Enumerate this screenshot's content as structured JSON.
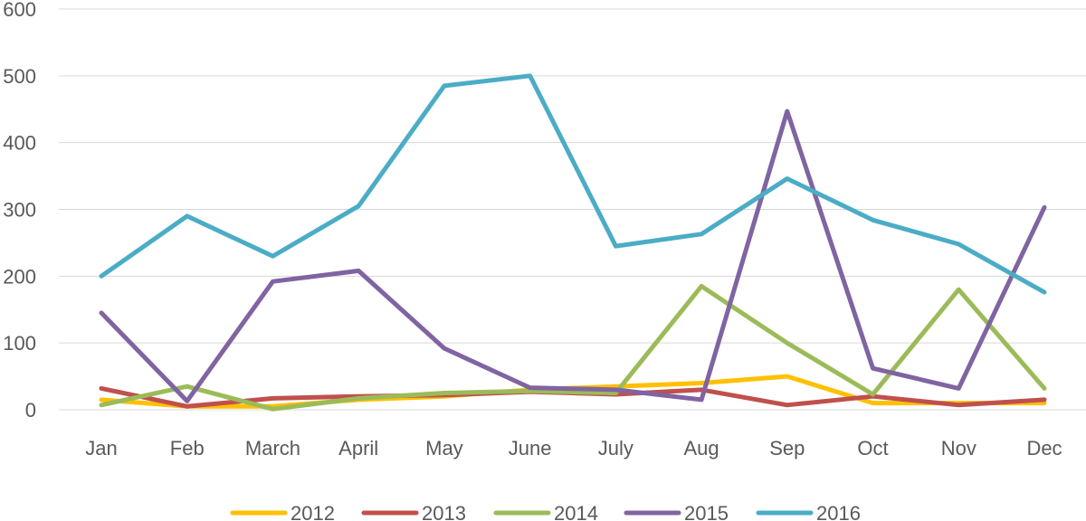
{
  "chart_data": {
    "type": "line",
    "title": "",
    "xlabel": "",
    "ylabel": "",
    "categories": [
      "Jan",
      "Feb",
      "March",
      "April",
      "May",
      "June",
      "July",
      "Aug",
      "Sep",
      "Oct",
      "Nov",
      "Dec"
    ],
    "ylim": [
      0,
      600
    ],
    "yticks": [
      "0",
      "100",
      "200",
      "300",
      "400",
      "500",
      "600"
    ],
    "grid": true,
    "legend_position": "bottom",
    "series": [
      {
        "name": "2012",
        "color": "#FFC000",
        "values": [
          15,
          5,
          5,
          15,
          20,
          30,
          35,
          40,
          50,
          10,
          10,
          10
        ]
      },
      {
        "name": "2013",
        "color": "#C0504D",
        "values": [
          32,
          5,
          17,
          20,
          22,
          27,
          23,
          30,
          7,
          20,
          7,
          15
        ]
      },
      {
        "name": "2014",
        "color": "#9BBB59",
        "values": [
          7,
          35,
          1,
          17,
          25,
          28,
          25,
          185,
          100,
          23,
          180,
          32
        ]
      },
      {
        "name": "2015",
        "color": "#8064A2",
        "values": [
          145,
          13,
          192,
          208,
          92,
          33,
          30,
          15,
          447,
          62,
          32,
          303
        ]
      },
      {
        "name": "2016",
        "color": "#4BACC6",
        "values": [
          200,
          290,
          230,
          305,
          485,
          500,
          245,
          263,
          346,
          284,
          248,
          176
        ]
      }
    ]
  }
}
